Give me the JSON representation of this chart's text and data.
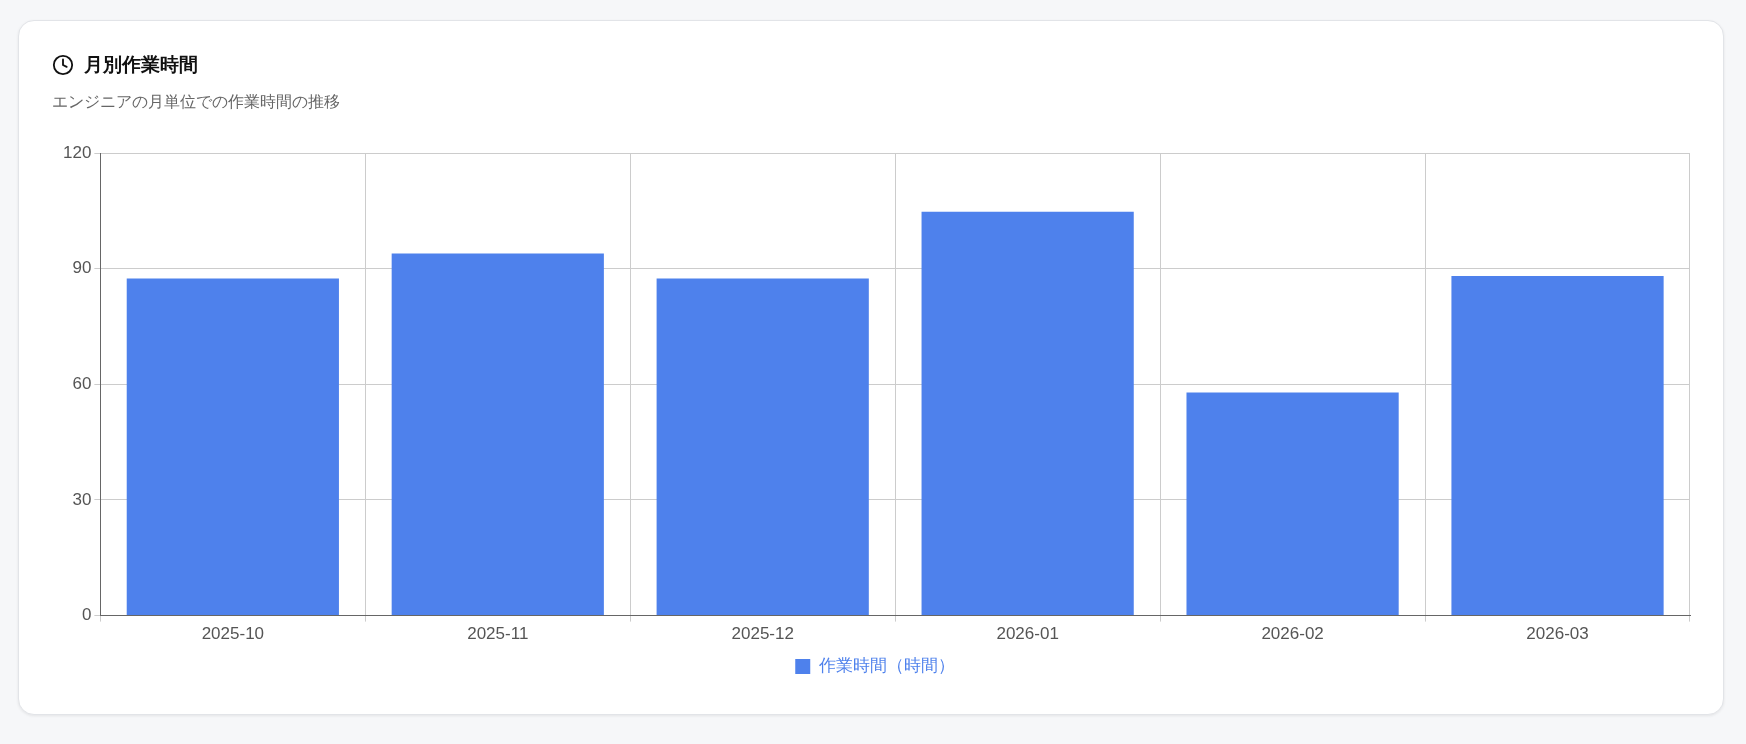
{
  "chart_data": {
    "type": "bar",
    "title": "月別作業時間",
    "subtitle": "エンジニアの月単位での作業時間の推移",
    "categories": [
      "2025-10",
      "2025-11",
      "2025-12",
      "2026-01",
      "2026-02",
      "2026-03"
    ],
    "series": [
      {
        "name": "作業時間（時間）",
        "color": "#4e81ec",
        "values": [
          87.5,
          94,
          87.5,
          104.8,
          57.9,
          88.1
        ]
      }
    ],
    "ylim": [
      0,
      120
    ],
    "yticks": [
      0,
      30,
      60,
      90,
      120
    ],
    "grid": true,
    "legend": "bottom"
  }
}
